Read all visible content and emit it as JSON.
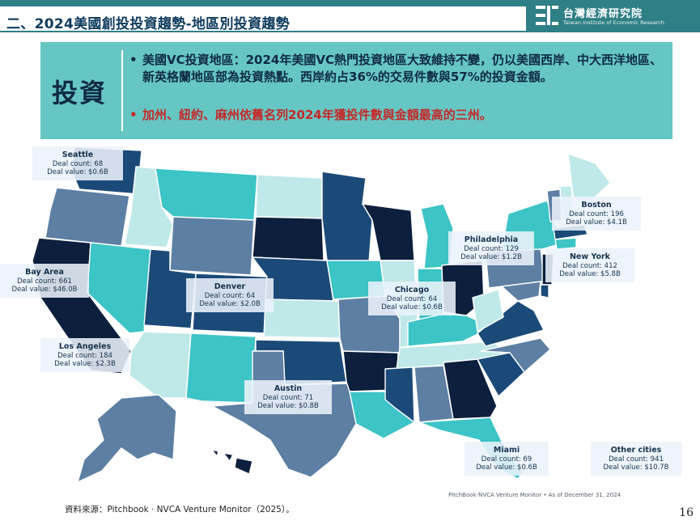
{
  "header": {
    "title": "二、2024美國創投投資趨勢-地區別投資趨勢",
    "logo_zh": "台灣經濟研究院",
    "logo_en": "Taiwan Institute of Economic Research",
    "logo_icon": "tier-logo-icon"
  },
  "summary": {
    "label": "投資",
    "bullet_symbol": "•",
    "bullet1": "美國VC投資地區：2024年美國VC熱門投資地區大致維持不變，仍以美國西岸、中大西洋地區、新英格蘭地區部為投資熱點。西岸約占36%的交易件數與57%的投資金額。",
    "bullet2": "加州、紐約、麻州依舊名列2024年獲投件數與金額最高的三州。"
  },
  "colors": {
    "teal_accent": "#2f7f86",
    "summary_bg": "#66c6c3",
    "highlight_red": "#c62828",
    "darkest_navy": "#0c1f3d",
    "dark_navy": "#1b4a78",
    "slate_blue": "#5d7fa3",
    "cyan": "#3cc4c6",
    "light_cyan": "#bfe9e8"
  },
  "callouts": [
    {
      "name": "Seattle",
      "count": "Deal count: 68",
      "value": "Deal value: $0.6B"
    },
    {
      "name": "Bay Area",
      "count": "Deal count: 661",
      "value": "Deal value: $46.0B"
    },
    {
      "name": "Los Angeles",
      "count": "Deal count: 184",
      "value": "Deal value: $2.3B"
    },
    {
      "name": "Denver",
      "count": "Deal count: 64",
      "value": "Deal value: $2.0B"
    },
    {
      "name": "Austin",
      "count": "Deal count: 71",
      "value": "Deal value: $0.8B"
    },
    {
      "name": "Chicago",
      "count": "Deal count: 64",
      "value": "Deal value: $0.6B"
    },
    {
      "name": "Philadelphia",
      "count": "Deal count: 129",
      "value": "Deal value: $1.2B"
    },
    {
      "name": "Boston",
      "count": "Deal count: 196",
      "value": "Deal value: $4.1B"
    },
    {
      "name": "New York",
      "count": "Deal count: 412",
      "value": "Deal value: $5.8B"
    },
    {
      "name": "Miami",
      "count": "Deal count: 69",
      "value": "Deal value: $0.6B"
    },
    {
      "name": "Other cities",
      "count": "Deal count: 941",
      "value": "Deal value: $10.7B"
    }
  ],
  "map_source": "PitchBook-NVCA Venture Monitor • As of December 31, 2024",
  "footnote": "資料來源：Pitchbook · NVCA Venture Monitor（2025）。",
  "page_number": "16"
}
